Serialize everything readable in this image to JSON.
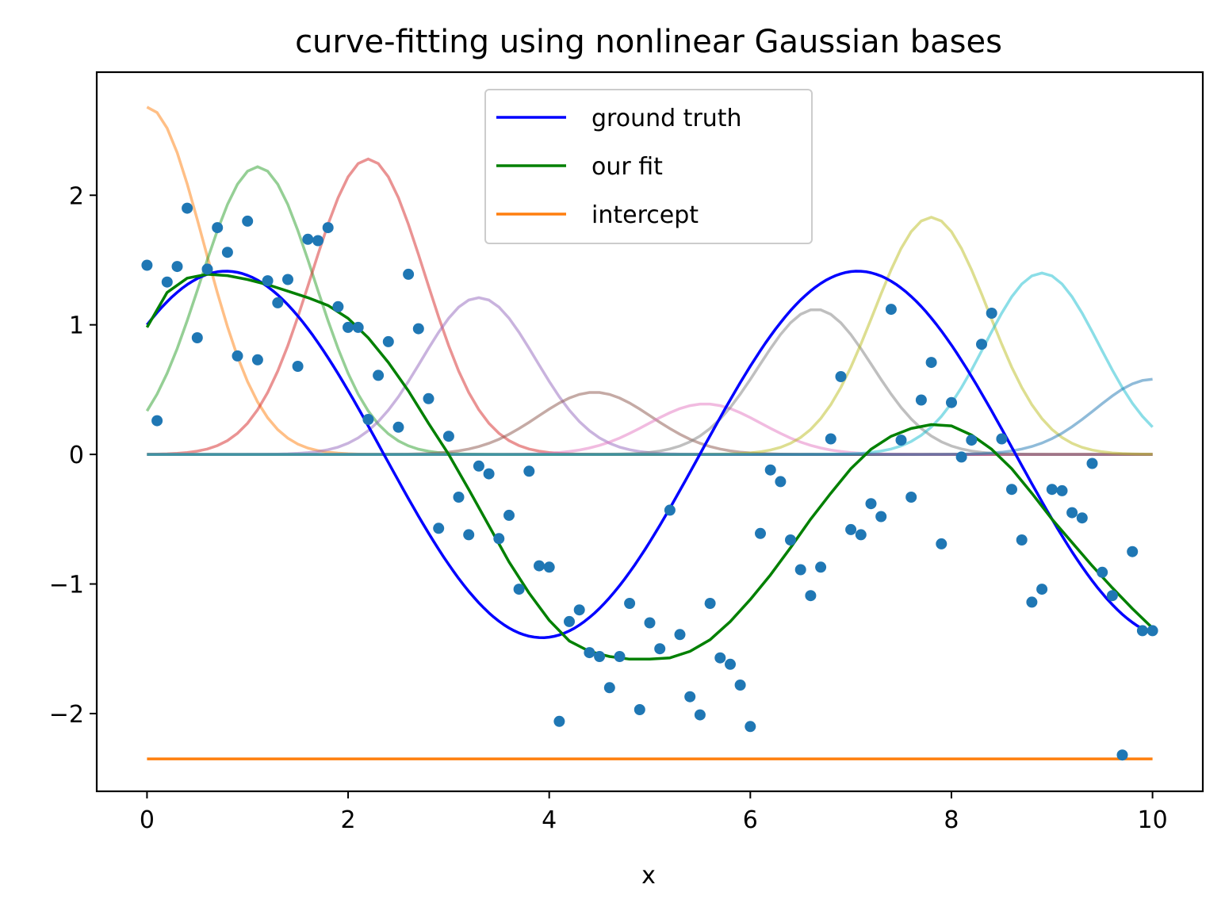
{
  "chart_data": {
    "type": "line",
    "title": "curve-fitting using nonlinear Gaussian bases",
    "xlabel": "x",
    "ylabel": "",
    "xlim": [
      -0.5,
      10.5
    ],
    "ylim": [
      -2.6,
      2.95
    ],
    "xticks": [
      {
        "value": 0,
        "label": "0"
      },
      {
        "value": 2,
        "label": "2"
      },
      {
        "value": 4,
        "label": "4"
      },
      {
        "value": 6,
        "label": "6"
      },
      {
        "value": 8,
        "label": "8"
      },
      {
        "value": 10,
        "label": "10"
      }
    ],
    "yticks": [
      {
        "value": -2,
        "label": "−2"
      },
      {
        "value": -1,
        "label": "−1"
      },
      {
        "value": 0,
        "label": "0"
      },
      {
        "value": 1,
        "label": "1"
      },
      {
        "value": 2,
        "label": "2"
      }
    ],
    "grid": false,
    "legend_position": "top-center",
    "legend": [
      {
        "name": "ground truth",
        "color": "#0000ff"
      },
      {
        "name": "our fit",
        "color": "#008000"
      },
      {
        "name": "intercept",
        "color": "#ff7f0e"
      }
    ],
    "series": [
      {
        "name": "ground truth",
        "kind": "function",
        "formula": "sin(x)+cos(x)",
        "x_range": [
          0,
          10
        ],
        "color": "#0000ff"
      },
      {
        "name": "our fit",
        "kind": "line",
        "color": "#008000",
        "x": [
          0,
          0.2,
          0.4,
          0.6,
          0.8,
          1.0,
          1.2,
          1.4,
          1.6,
          1.8,
          2.0,
          2.2,
          2.4,
          2.6,
          2.8,
          3.0,
          3.2,
          3.4,
          3.6,
          3.8,
          4.0,
          4.2,
          4.4,
          4.6,
          4.8,
          5.0,
          5.2,
          5.4,
          5.6,
          5.8,
          6.0,
          6.2,
          6.4,
          6.6,
          6.8,
          7.0,
          7.2,
          7.4,
          7.6,
          7.8,
          8.0,
          8.2,
          8.4,
          8.6,
          8.8,
          9.0,
          9.2,
          9.4,
          9.6,
          9.8,
          10.0
        ],
        "y": [
          0.98,
          1.25,
          1.36,
          1.39,
          1.38,
          1.35,
          1.31,
          1.26,
          1.21,
          1.15,
          1.05,
          0.9,
          0.71,
          0.49,
          0.24,
          0.0,
          -0.27,
          -0.55,
          -0.83,
          -1.07,
          -1.28,
          -1.44,
          -1.52,
          -1.56,
          -1.58,
          -1.58,
          -1.57,
          -1.52,
          -1.43,
          -1.29,
          -1.12,
          -0.93,
          -0.72,
          -0.5,
          -0.3,
          -0.11,
          0.04,
          0.14,
          0.2,
          0.23,
          0.22,
          0.15,
          0.04,
          -0.11,
          -0.3,
          -0.5,
          -0.68,
          -0.86,
          -1.03,
          -1.19,
          -1.34
        ]
      },
      {
        "name": "intercept",
        "kind": "line",
        "color": "#ff7f0e",
        "x": [
          0,
          10
        ],
        "y": [
          -2.35,
          -2.35
        ]
      }
    ],
    "gaussian_bases": [
      {
        "center": 0.0,
        "amplitude": 2.68,
        "width": 0.8,
        "color": "#ff7f0e"
      },
      {
        "center": 1.1,
        "amplitude": 2.22,
        "width": 0.8,
        "color": "#2ca02c"
      },
      {
        "center": 2.2,
        "amplitude": 2.28,
        "width": 0.8,
        "color": "#d62728"
      },
      {
        "center": 3.3,
        "amplitude": 1.21,
        "width": 0.8,
        "color": "#9467bd"
      },
      {
        "center": 4.45,
        "amplitude": 0.48,
        "width": 0.8,
        "color": "#8c564b"
      },
      {
        "center": 5.55,
        "amplitude": 0.39,
        "width": 0.8,
        "color": "#e377c2"
      },
      {
        "center": 6.65,
        "amplitude": 1.12,
        "width": 0.8,
        "color": "#7f7f7f"
      },
      {
        "center": 7.8,
        "amplitude": 1.83,
        "width": 0.8,
        "color": "#bcbd22"
      },
      {
        "center": 8.9,
        "amplitude": 1.4,
        "width": 0.8,
        "color": "#17becf"
      },
      {
        "center": 10.0,
        "amplitude": 0.58,
        "width": 0.8,
        "color": "#1f77b4"
      }
    ],
    "scatter": {
      "color": "#1f77b4",
      "x": [
        0.0,
        0.1,
        0.2,
        0.3,
        0.4,
        0.5,
        0.6,
        0.7,
        0.8,
        0.9,
        1.0,
        1.1,
        1.2,
        1.3,
        1.4,
        1.5,
        1.6,
        1.7,
        1.8,
        1.9,
        2.0,
        2.1,
        2.2,
        2.3,
        2.4,
        2.5,
        2.6,
        2.7,
        2.8,
        2.9,
        3.0,
        3.1,
        3.2,
        3.3,
        3.4,
        3.5,
        3.6,
        3.7,
        3.8,
        3.9,
        4.0,
        4.1,
        4.2,
        4.3,
        4.4,
        4.5,
        4.6,
        4.7,
        4.8,
        4.9,
        5.0,
        5.1,
        5.2,
        5.3,
        5.4,
        5.5,
        5.6,
        5.7,
        5.8,
        5.9,
        6.0,
        6.1,
        6.2,
        6.3,
        6.4,
        6.5,
        6.6,
        6.7,
        6.8,
        6.9,
        7.0,
        7.1,
        7.2,
        7.3,
        7.4,
        7.5,
        7.6,
        7.7,
        7.8,
        7.9,
        8.0,
        8.1,
        8.2,
        8.3,
        8.4,
        8.5,
        8.6,
        8.7,
        8.8,
        8.9,
        9.0,
        9.1,
        9.2,
        9.3,
        9.4,
        9.5,
        9.6,
        9.7,
        9.8,
        9.9,
        10.0
      ],
      "y": [
        1.46,
        0.26,
        1.33,
        1.45,
        1.9,
        0.9,
        1.43,
        1.75,
        1.56,
        0.76,
        1.8,
        0.73,
        1.34,
        1.17,
        1.35,
        0.68,
        1.66,
        1.65,
        1.75,
        1.14,
        0.98,
        0.98,
        0.27,
        0.61,
        0.87,
        0.21,
        1.39,
        0.97,
        0.43,
        -0.57,
        0.14,
        -0.33,
        -0.62,
        -0.09,
        -0.15,
        -0.65,
        -0.47,
        -1.04,
        -0.13,
        -0.86,
        -0.87,
        -2.06,
        -1.29,
        -1.2,
        -1.53,
        -1.56,
        -1.8,
        -1.56,
        -1.15,
        -1.97,
        -1.3,
        -1.5,
        -0.43,
        -1.39,
        -1.87,
        -2.01,
        -1.15,
        -1.57,
        -1.62,
        -1.78,
        -2.1,
        -0.61,
        -0.12,
        -0.21,
        -0.66,
        -0.89,
        -1.09,
        -0.87,
        0.12,
        0.6,
        -0.58,
        -0.62,
        -0.38,
        -0.48,
        1.12,
        0.11,
        -0.33,
        0.42,
        0.71,
        -0.69,
        0.4,
        -0.02,
        0.11,
        0.85,
        1.09,
        0.12,
        -0.27,
        -0.66,
        -1.14,
        -1.04,
        -0.27,
        -0.28,
        -0.45,
        -0.49,
        -0.07,
        -0.91,
        -1.09,
        -2.32,
        -0.75,
        -1.36,
        -1.36
      ]
    }
  }
}
